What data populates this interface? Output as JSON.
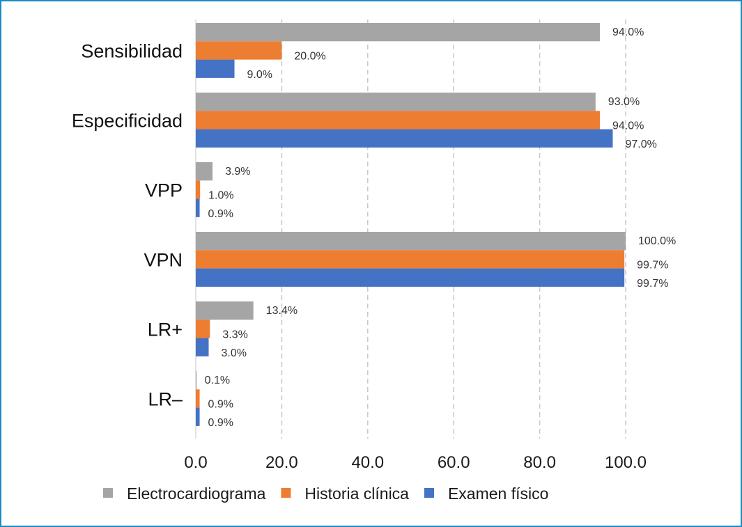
{
  "chart_data": {
    "type": "bar",
    "orientation": "horizontal",
    "title": "",
    "xlabel": "",
    "ylabel": "",
    "xlim": [
      0,
      100
    ],
    "x_ticks": [
      "0.0",
      "20.0",
      "40.0",
      "60.0",
      "80.0",
      "100.0"
    ],
    "x_tick_values": [
      0,
      20,
      40,
      60,
      80,
      100
    ],
    "grid": "vertical-dashed",
    "legend_position": "bottom",
    "categories": [
      "Sensibilidad",
      "Especificidad",
      "VPP",
      "VPN",
      "LR+",
      "LR–"
    ],
    "series": [
      {
        "name": "Electrocardiograma",
        "color": "#a5a5a5",
        "values": [
          94.0,
          93.0,
          3.9,
          100.0,
          13.4,
          0.1
        ],
        "labels": [
          "94.0%",
          "93.0%",
          "3.9%",
          "100.0%",
          "13.4%",
          "0.1%"
        ]
      },
      {
        "name": "Historia clínica",
        "color": "#ed7d31",
        "values": [
          20.0,
          94.0,
          1.0,
          99.7,
          3.3,
          0.9
        ],
        "labels": [
          "20.0%",
          "94.0%",
          "1.0%",
          "99.7%",
          "3.3%",
          "0.9%"
        ]
      },
      {
        "name": "Examen físico",
        "color": "#4472c4",
        "values": [
          9.0,
          97.0,
          0.9,
          99.7,
          3.0,
          0.9
        ],
        "labels": [
          "9.0%",
          "97.0%",
          "0.9%",
          "99.7%",
          "3.0%",
          "0.9%"
        ]
      }
    ]
  },
  "frame": {
    "border_color": "#1a8ac4"
  }
}
